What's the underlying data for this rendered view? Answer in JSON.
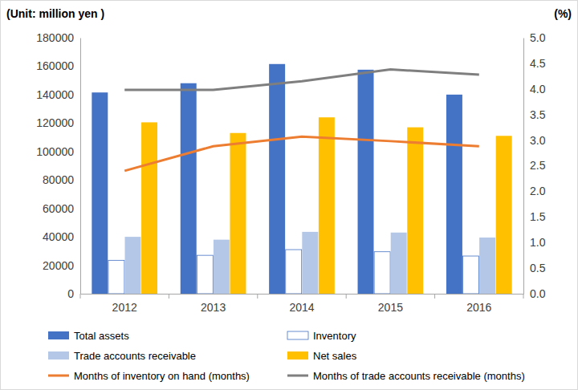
{
  "chart_data": {
    "type": "bar",
    "y_label": "(Unit: million yen )",
    "y2_label": "(%)",
    "categories": [
      "2012",
      "2013",
      "2014",
      "2015",
      "2016"
    ],
    "ylim": [
      0,
      180000
    ],
    "yticks": [
      0,
      20000,
      40000,
      60000,
      80000,
      100000,
      120000,
      140000,
      160000,
      180000
    ],
    "y2lim": [
      0,
      5.0
    ],
    "y2ticks": [
      {
        "value": 0,
        "label": "0.0"
      },
      0.5,
      {
        "value": 1,
        "label": "1.0"
      },
      1.5,
      {
        "value": 2,
        "label": "2.0"
      },
      2.5,
      {
        "value": 3,
        "label": "3.0"
      },
      3.5,
      {
        "value": 4,
        "label": "4.0"
      },
      4.5,
      {
        "value": 5,
        "label": "5.0"
      }
    ],
    "grid": false,
    "legend": "bottom",
    "series": [
      {
        "name": "Total assets",
        "type": "bar",
        "color": "#4472c4",
        "values": [
          141500,
          148000,
          161500,
          157500,
          140000
        ]
      },
      {
        "name": "Inventory",
        "type": "bar",
        "color": "#ffffff",
        "values": [
          23500,
          27000,
          31000,
          29500,
          26500
        ]
      },
      {
        "name": "Trade accounts receivable",
        "type": "bar",
        "color": "#b4c7e7",
        "values": [
          40000,
          38000,
          43500,
          43000,
          39500
        ]
      },
      {
        "name": "Net sales",
        "type": "bar",
        "color": "#ffc000",
        "values": [
          120500,
          113000,
          124000,
          117000,
          111000
        ]
      },
      {
        "name": "Months of inventory on hand (months)",
        "type": "line",
        "axis": "y2",
        "color": "#ed7d31",
        "values": [
          2.4,
          2.88,
          3.07,
          2.98,
          2.88
        ]
      },
      {
        "name": "Months of trade accounts receivable (months)",
        "type": "line",
        "axis": "y2",
        "color": "#7f7f7f",
        "values": [
          3.98,
          3.98,
          4.15,
          4.38,
          4.28
        ]
      }
    ]
  }
}
